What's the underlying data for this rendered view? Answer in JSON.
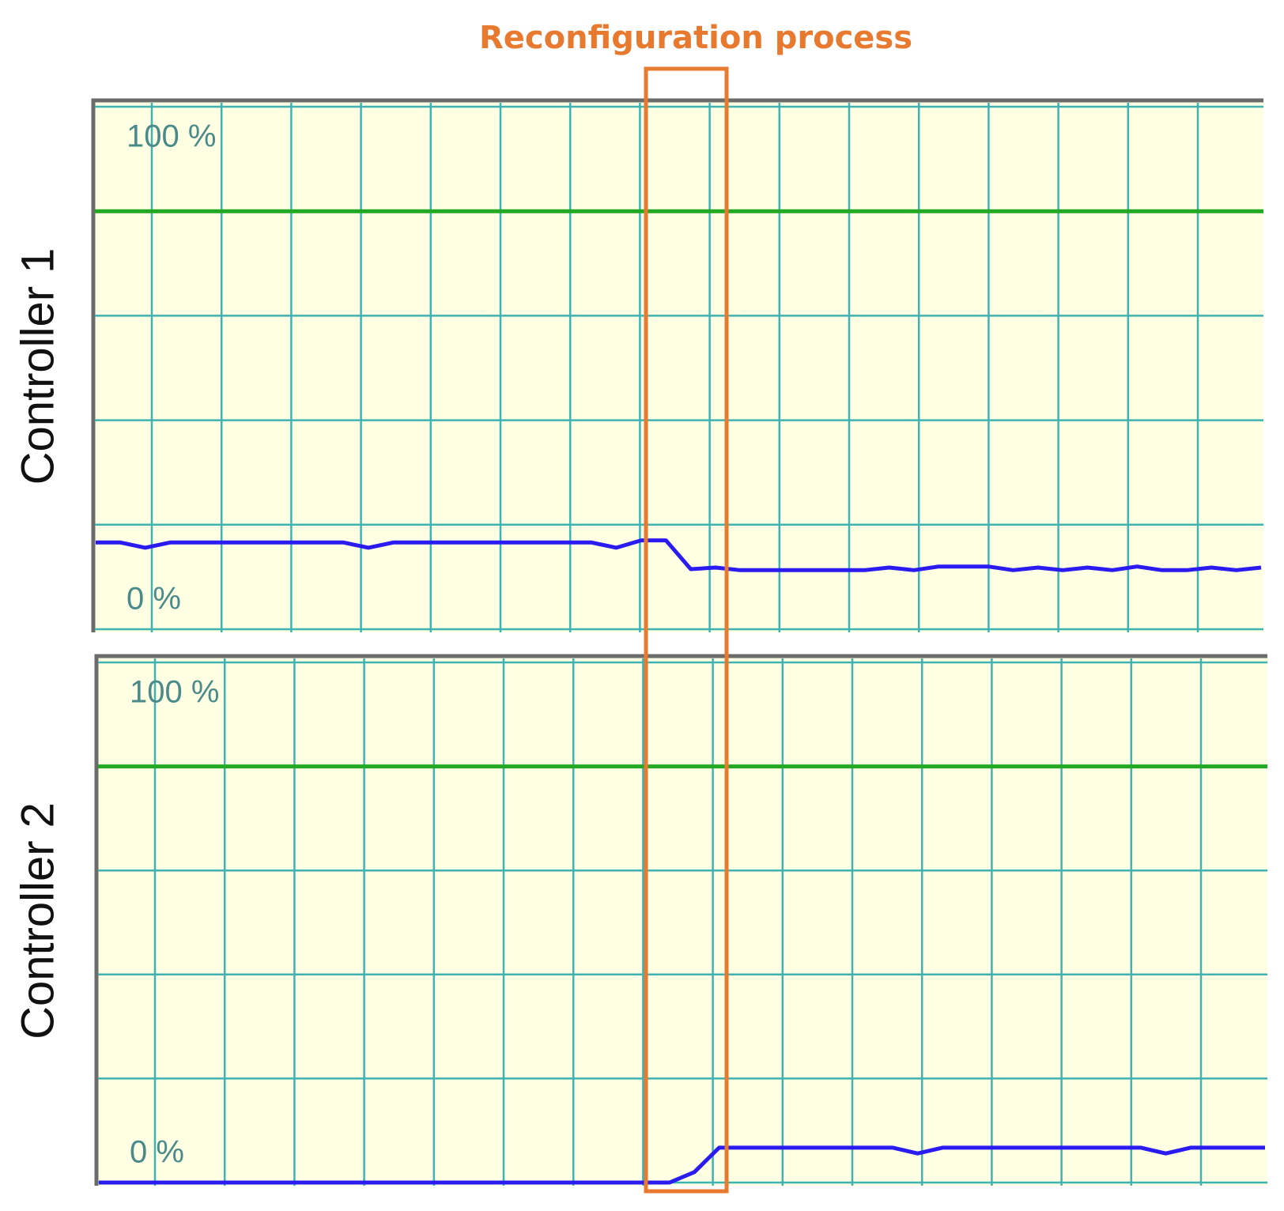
{
  "annotation": "Reconfiguration process",
  "annotation_color": "#e87a30",
  "chart_data": [
    {
      "type": "line",
      "ylabel": "Controller 1",
      "ylim": [
        0,
        100
      ],
      "yticks": [
        0,
        20,
        40,
        60,
        80,
        100
      ],
      "grid": true,
      "ylabels": [
        {
          "value": 100,
          "label": "100 %"
        },
        {
          "value": 0,
          "label": "0 %"
        }
      ],
      "hline": {
        "value": 80,
        "color": "#22a822"
      },
      "series": [
        {
          "color": "#2a1cf0",
          "values": [
            16.6,
            16.6,
            15.6,
            16.6,
            16.6,
            16.6,
            16.6,
            16.6,
            16.6,
            16.6,
            16.6,
            15.6,
            16.6,
            16.6,
            16.6,
            16.6,
            16.6,
            16.6,
            16.6,
            16.6,
            16.6,
            15.6,
            17,
            17,
            11.5,
            11.8,
            11.3,
            11.3,
            11.3,
            11.3,
            11.3,
            11.3,
            11.8,
            11.3,
            12,
            12,
            12,
            11.3,
            11.8,
            11.3,
            11.8,
            11.3,
            12,
            11.3,
            11.3,
            11.8,
            11.3,
            11.8
          ]
        }
      ]
    },
    {
      "type": "line",
      "ylabel": "Controller 2",
      "ylim": [
        0,
        100
      ],
      "yticks": [
        0,
        20,
        40,
        60,
        80,
        100
      ],
      "grid": true,
      "ylabels": [
        {
          "value": 100,
          "label": "100 %"
        },
        {
          "value": 0,
          "label": "0 %"
        }
      ],
      "hline": {
        "value": 80,
        "color": "#22a822"
      },
      "series": [
        {
          "color": "#2a1cf0",
          "values": [
            0,
            0,
            0,
            0,
            0,
            0,
            0,
            0,
            0,
            0,
            0,
            0,
            0,
            0,
            0,
            0,
            0,
            0,
            0,
            0,
            0,
            0,
            0,
            0,
            2,
            6.7,
            6.7,
            6.7,
            6.7,
            6.7,
            6.7,
            6.7,
            6.7,
            5.6,
            6.7,
            6.7,
            6.7,
            6.7,
            6.7,
            6.7,
            6.7,
            6.7,
            6.7,
            5.6,
            6.7,
            6.7,
            6.7,
            6.7
          ]
        }
      ]
    }
  ]
}
